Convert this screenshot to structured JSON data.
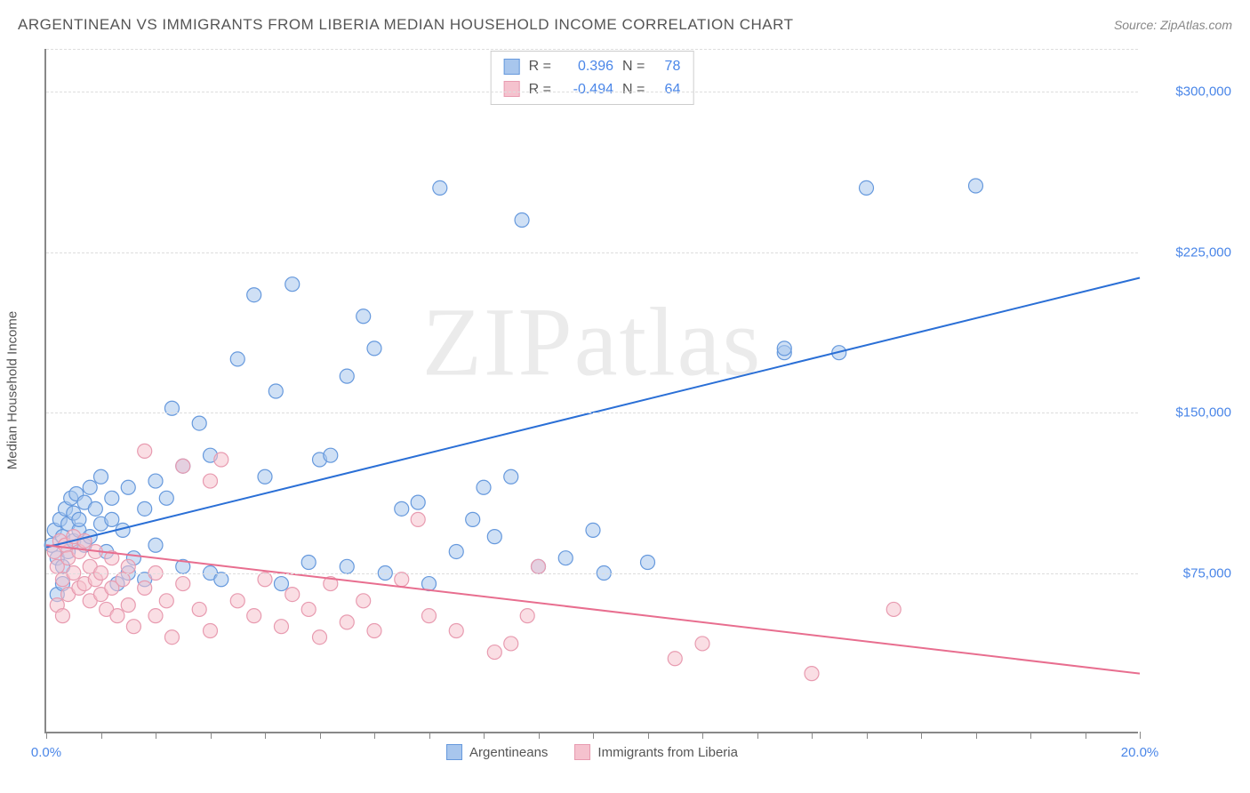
{
  "title": "ARGENTINEAN VS IMMIGRANTS FROM LIBERIA MEDIAN HOUSEHOLD INCOME CORRELATION CHART",
  "source_label": "Source: ZipAtlas.com",
  "watermark": "ZIPatlas",
  "chart": {
    "type": "scatter",
    "ylabel": "Median Household Income",
    "xlim": [
      0,
      20
    ],
    "ylim": [
      0,
      320000
    ],
    "xticks_minor": [
      0,
      1,
      2,
      3,
      4,
      5,
      6,
      7,
      8,
      9,
      10,
      11,
      12,
      13,
      14,
      15,
      16,
      17,
      18,
      19,
      20
    ],
    "xtick_label_left": "0.0%",
    "xtick_label_right": "20.0%",
    "yticks": [
      75000,
      150000,
      225000,
      300000
    ],
    "ytick_labels": [
      "$75,000",
      "$150,000",
      "$225,000",
      "$300,000"
    ],
    "grid_color": "#dddddd",
    "axis_color": "#888888",
    "background_color": "#ffffff",
    "label_fontsize": 15,
    "title_fontsize": 17,
    "tick_color": "#4a86e8",
    "marker_radius": 8,
    "marker_opacity": 0.55,
    "line_width": 2,
    "point_stroke_width": 1.2
  },
  "series": [
    {
      "name": "Argentineans",
      "color_fill": "#a8c6ed",
      "color_stroke": "#6699dd",
      "line_color": "#2a6fd6",
      "R": "0.396",
      "N": "78",
      "trend": {
        "x1": 0,
        "y1": 87000,
        "x2": 20,
        "y2": 213000
      },
      "points": [
        [
          0.1,
          88000
        ],
        [
          0.15,
          95000
        ],
        [
          0.2,
          82000
        ],
        [
          0.25,
          100000
        ],
        [
          0.3,
          92000
        ],
        [
          0.3,
          78000
        ],
        [
          0.35,
          105000
        ],
        [
          0.4,
          98000
        ],
        [
          0.4,
          85000
        ],
        [
          0.45,
          110000
        ],
        [
          0.5,
          90000
        ],
        [
          0.5,
          103000
        ],
        [
          0.55,
          112000
        ],
        [
          0.6,
          95000
        ],
        [
          0.6,
          100000
        ],
        [
          0.7,
          108000
        ],
        [
          0.7,
          88000
        ],
        [
          0.8,
          115000
        ],
        [
          0.8,
          92000
        ],
        [
          0.9,
          105000
        ],
        [
          1.0,
          98000
        ],
        [
          1.0,
          120000
        ],
        [
          1.1,
          85000
        ],
        [
          1.2,
          110000
        ],
        [
          1.2,
          100000
        ],
        [
          1.3,
          70000
        ],
        [
          1.4,
          95000
        ],
        [
          1.5,
          75000
        ],
        [
          1.5,
          115000
        ],
        [
          1.6,
          82000
        ],
        [
          1.8,
          105000
        ],
        [
          1.8,
          72000
        ],
        [
          2.0,
          118000
        ],
        [
          2.0,
          88000
        ],
        [
          2.2,
          110000
        ],
        [
          2.3,
          152000
        ],
        [
          2.5,
          125000
        ],
        [
          2.5,
          78000
        ],
        [
          2.8,
          145000
        ],
        [
          3.0,
          75000
        ],
        [
          3.0,
          130000
        ],
        [
          3.2,
          72000
        ],
        [
          3.5,
          175000
        ],
        [
          3.8,
          205000
        ],
        [
          4.0,
          120000
        ],
        [
          4.2,
          160000
        ],
        [
          4.3,
          70000
        ],
        [
          4.5,
          210000
        ],
        [
          4.8,
          80000
        ],
        [
          5.0,
          128000
        ],
        [
          5.2,
          130000
        ],
        [
          5.5,
          167000
        ],
        [
          5.5,
          78000
        ],
        [
          5.8,
          195000
        ],
        [
          6.0,
          180000
        ],
        [
          6.2,
          75000
        ],
        [
          6.5,
          105000
        ],
        [
          6.8,
          108000
        ],
        [
          7.0,
          70000
        ],
        [
          7.2,
          255000
        ],
        [
          7.5,
          85000
        ],
        [
          7.8,
          100000
        ],
        [
          8.0,
          115000
        ],
        [
          8.2,
          92000
        ],
        [
          8.5,
          120000
        ],
        [
          8.7,
          240000
        ],
        [
          9.0,
          78000
        ],
        [
          9.5,
          82000
        ],
        [
          10.0,
          95000
        ],
        [
          10.2,
          75000
        ],
        [
          11.0,
          80000
        ],
        [
          13.5,
          178000
        ],
        [
          13.5,
          180000
        ],
        [
          14.5,
          178000
        ],
        [
          15.0,
          255000
        ],
        [
          17.0,
          256000
        ],
        [
          0.2,
          65000
        ],
        [
          0.3,
          70000
        ]
      ]
    },
    {
      "name": "Immigrants from Liberia",
      "color_fill": "#f5c2ce",
      "color_stroke": "#e89bb0",
      "line_color": "#e86e8f",
      "R": "-0.494",
      "N": "64",
      "trend": {
        "x1": 0,
        "y1": 88000,
        "x2": 20,
        "y2": 28000
      },
      "points": [
        [
          0.15,
          85000
        ],
        [
          0.2,
          78000
        ],
        [
          0.25,
          90000
        ],
        [
          0.3,
          72000
        ],
        [
          0.35,
          88000
        ],
        [
          0.4,
          65000
        ],
        [
          0.4,
          82000
        ],
        [
          0.5,
          75000
        ],
        [
          0.5,
          92000
        ],
        [
          0.6,
          68000
        ],
        [
          0.6,
          85000
        ],
        [
          0.7,
          70000
        ],
        [
          0.7,
          90000
        ],
        [
          0.8,
          62000
        ],
        [
          0.8,
          78000
        ],
        [
          0.9,
          72000
        ],
        [
          0.9,
          85000
        ],
        [
          1.0,
          65000
        ],
        [
          1.0,
          75000
        ],
        [
          1.1,
          58000
        ],
        [
          1.2,
          82000
        ],
        [
          1.2,
          68000
        ],
        [
          1.3,
          55000
        ],
        [
          1.4,
          72000
        ],
        [
          1.5,
          60000
        ],
        [
          1.5,
          78000
        ],
        [
          1.6,
          50000
        ],
        [
          1.8,
          68000
        ],
        [
          1.8,
          132000
        ],
        [
          2.0,
          55000
        ],
        [
          2.0,
          75000
        ],
        [
          2.2,
          62000
        ],
        [
          2.3,
          45000
        ],
        [
          2.5,
          70000
        ],
        [
          2.5,
          125000
        ],
        [
          2.8,
          58000
        ],
        [
          3.0,
          48000
        ],
        [
          3.0,
          118000
        ],
        [
          3.2,
          128000
        ],
        [
          3.5,
          62000
        ],
        [
          3.8,
          55000
        ],
        [
          4.0,
          72000
        ],
        [
          4.3,
          50000
        ],
        [
          4.5,
          65000
        ],
        [
          4.8,
          58000
        ],
        [
          5.0,
          45000
        ],
        [
          5.2,
          70000
        ],
        [
          5.5,
          52000
        ],
        [
          5.8,
          62000
        ],
        [
          6.0,
          48000
        ],
        [
          6.5,
          72000
        ],
        [
          6.8,
          100000
        ],
        [
          7.0,
          55000
        ],
        [
          7.5,
          48000
        ],
        [
          8.2,
          38000
        ],
        [
          8.5,
          42000
        ],
        [
          8.8,
          55000
        ],
        [
          9.0,
          78000
        ],
        [
          11.5,
          35000
        ],
        [
          12.0,
          42000
        ],
        [
          14.0,
          28000
        ],
        [
          15.5,
          58000
        ],
        [
          0.2,
          60000
        ],
        [
          0.3,
          55000
        ]
      ]
    }
  ],
  "legend_stats_labels": {
    "R": "R =",
    "N": "N ="
  }
}
